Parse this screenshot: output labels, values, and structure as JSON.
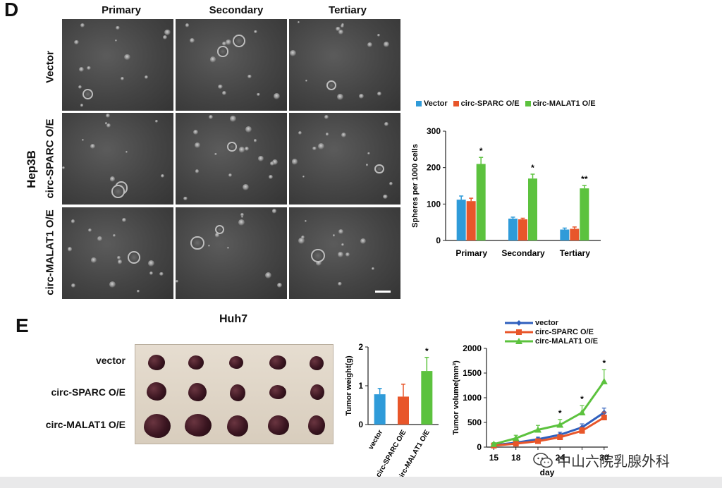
{
  "panelD": {
    "letter": "D",
    "col_headers": [
      "Primary",
      "Secondary",
      "Tertiary"
    ],
    "group_label": "Hep3B",
    "row_labels": [
      "Vector",
      "circ-SPARC O/E",
      "circ-MALAT1 O/E"
    ],
    "chart_data": {
      "type": "bar",
      "categories": [
        "Primary",
        "Secondary",
        "Tertiary"
      ],
      "series": [
        {
          "name": "Vector",
          "values": [
            112,
            60,
            30
          ],
          "errors": [
            10,
            4,
            4
          ],
          "color": "#2f9bd9"
        },
        {
          "name": "circ-SPARC O/E",
          "values": [
            108,
            58,
            32
          ],
          "errors": [
            8,
            3,
            5
          ],
          "color": "#e8562a"
        },
        {
          "name": "circ-MALAT1 O/E",
          "values": [
            210,
            170,
            143
          ],
          "errors": [
            18,
            12,
            8
          ],
          "color": "#5cc23e"
        }
      ],
      "significance": [
        "*",
        "*",
        "**"
      ],
      "ylabel": "Spheres per 1000 cells",
      "ylim": [
        0,
        300
      ],
      "yticks": [
        0,
        100,
        200,
        300
      ],
      "legend_position": "top"
    }
  },
  "panelE": {
    "letter": "E",
    "photo_title": "Huh7",
    "row_names": [
      "vector",
      "circ-SPARC O/E",
      "circ-MALAT1 O/E"
    ],
    "weight_chart": {
      "type": "bar",
      "categories": [
        "vector",
        "circ-SPARC O/E",
        "circ-MALAT1 O/E"
      ],
      "values": [
        0.78,
        0.72,
        1.38
      ],
      "errors": [
        0.15,
        0.32,
        0.35
      ],
      "colors": [
        "#2f9bd9",
        "#e8562a",
        "#5cc23e"
      ],
      "significance": [
        "",
        "",
        "*"
      ],
      "ylabel": "Tumor weight(g)",
      "ylim": [
        0,
        2
      ],
      "yticks": [
        0,
        1,
        2
      ]
    },
    "volume_chart": {
      "type": "line",
      "x": [
        15,
        18,
        21,
        24,
        27,
        30
      ],
      "xticks_labels": [
        "15",
        "18",
        "",
        "24",
        "",
        "30"
      ],
      "series": [
        {
          "name": "vector",
          "values": [
            40,
            90,
            160,
            250,
            400,
            700
          ],
          "errors": [
            20,
            30,
            40,
            50,
            70,
            90
          ],
          "color": "#2f5fbd"
        },
        {
          "name": "circ-SPARC O/E",
          "values": [
            30,
            70,
            120,
            200,
            330,
            600
          ],
          "errors": [
            20,
            25,
            35,
            45,
            65,
            110
          ],
          "color": "#e8562a"
        },
        {
          "name": "circ-MALAT1 O/E",
          "values": [
            60,
            180,
            350,
            450,
            700,
            1330
          ],
          "errors": [
            30,
            60,
            90,
            110,
            140,
            240
          ],
          "color": "#5cc23e"
        }
      ],
      "significance_at": [
        24,
        27,
        30
      ],
      "significance": [
        "*",
        "*",
        "*"
      ],
      "xlabel": "day",
      "ylabel": "Tumor volume(mm³)",
      "ylim": [
        0,
        2000
      ],
      "yticks": [
        0,
        500,
        1000,
        1500,
        2000
      ],
      "legend_position": "top"
    }
  },
  "watermark": {
    "text": "中山六院乳腺外科",
    "icon": "wechat-icon"
  }
}
